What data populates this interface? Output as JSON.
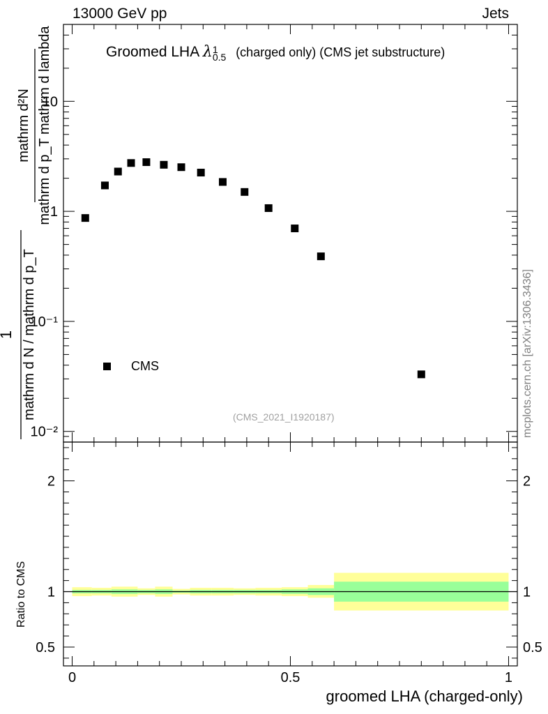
{
  "header": {
    "left": "13000 GeV pp",
    "right": "Jets"
  },
  "title": {
    "main": "Groomed LHA",
    "symbol": "λ",
    "superscript": "1",
    "subscript": "0.5",
    "suffix": "(charged only) (CMS jet substructure)"
  },
  "analysis_tag": "(CMS_2021_I1920187)",
  "watermark": "mcplots.cern.ch [arXiv:1306.3436]",
  "colors": {
    "marker": "#000000",
    "band_inner": "#99ff99",
    "band_outer": "#ffff99",
    "ref_line": "#000000",
    "tag_text": "#a0a0a0",
    "watermark_text": "#808080"
  },
  "chart_data": [
    {
      "type": "scatter",
      "panel": "main",
      "ylabel": {
        "numerator": "mathrm d²N",
        "denominator": "mathrm d p_T mathrm d lambda",
        "prefix_num": "1",
        "prefix_den": "mathrm d N / mathrm d p_T"
      },
      "yscale": "log",
      "ylim": [
        0.008,
        50
      ],
      "xlim": [
        -0.02,
        1.02
      ],
      "grid": false,
      "legend": {
        "placement": "bottom-left",
        "entries": [
          "CMS"
        ]
      },
      "series": [
        {
          "name": "CMS",
          "marker": "square",
          "x": [
            0.03,
            0.075,
            0.105,
            0.135,
            0.17,
            0.21,
            0.25,
            0.295,
            0.345,
            0.395,
            0.45,
            0.51,
            0.57,
            0.8
          ],
          "y": [
            0.87,
            1.72,
            2.3,
            2.75,
            2.8,
            2.65,
            2.52,
            2.25,
            1.85,
            1.5,
            1.07,
            0.7,
            0.39,
            0.033
          ]
        }
      ],
      "y_ticks": [
        "10⁻²",
        "10⁻¹",
        "1",
        "10"
      ]
    },
    {
      "type": "area",
      "panel": "ratio",
      "ylabel": "Ratio to CMS",
      "xlabel": "groomed LHA (charged-only)",
      "ylim": [
        0.33,
        2.35
      ],
      "xlim": [
        -0.02,
        1.02
      ],
      "reference": 1,
      "bins": [
        {
          "x0": 0.0,
          "x1": 0.045,
          "inner": [
            0.985,
            1.015
          ],
          "outer": [
            0.96,
            1.04
          ]
        },
        {
          "x0": 0.045,
          "x1": 0.09,
          "inner": [
            0.985,
            1.015
          ],
          "outer": [
            0.965,
            1.035
          ]
        },
        {
          "x0": 0.09,
          "x1": 0.15,
          "inner": [
            0.98,
            1.02
          ],
          "outer": [
            0.955,
            1.045
          ]
        },
        {
          "x0": 0.15,
          "x1": 0.19,
          "inner": [
            0.985,
            1.015
          ],
          "outer": [
            0.97,
            1.03
          ]
        },
        {
          "x0": 0.19,
          "x1": 0.23,
          "inner": [
            0.98,
            1.02
          ],
          "outer": [
            0.955,
            1.045
          ]
        },
        {
          "x0": 0.23,
          "x1": 0.27,
          "inner": [
            0.99,
            1.01
          ],
          "outer": [
            0.975,
            1.025
          ]
        },
        {
          "x0": 0.27,
          "x1": 0.32,
          "inner": [
            0.985,
            1.015
          ],
          "outer": [
            0.965,
            1.035
          ]
        },
        {
          "x0": 0.32,
          "x1": 0.37,
          "inner": [
            0.985,
            1.015
          ],
          "outer": [
            0.965,
            1.035
          ]
        },
        {
          "x0": 0.37,
          "x1": 0.42,
          "inner": [
            0.985,
            1.015
          ],
          "outer": [
            0.97,
            1.03
          ]
        },
        {
          "x0": 0.42,
          "x1": 0.48,
          "inner": [
            0.985,
            1.015
          ],
          "outer": [
            0.965,
            1.035
          ]
        },
        {
          "x0": 0.48,
          "x1": 0.54,
          "inner": [
            0.98,
            1.02
          ],
          "outer": [
            0.96,
            1.04
          ]
        },
        {
          "x0": 0.54,
          "x1": 0.6,
          "inner": [
            0.97,
            1.03
          ],
          "outer": [
            0.945,
            1.06
          ]
        },
        {
          "x0": 0.6,
          "x1": 1.0,
          "inner": [
            0.91,
            1.09
          ],
          "outer": [
            0.83,
            1.17
          ]
        }
      ],
      "y_ticks": [
        {
          "value": 0.5,
          "label": "0.5"
        },
        {
          "value": 1,
          "label": "1"
        },
        {
          "value": 2,
          "label": "2"
        }
      ],
      "x_ticks": [
        {
          "value": 0,
          "label": "0"
        },
        {
          "value": 0.5,
          "label": "0.5"
        },
        {
          "value": 1,
          "label": "1"
        }
      ]
    }
  ]
}
